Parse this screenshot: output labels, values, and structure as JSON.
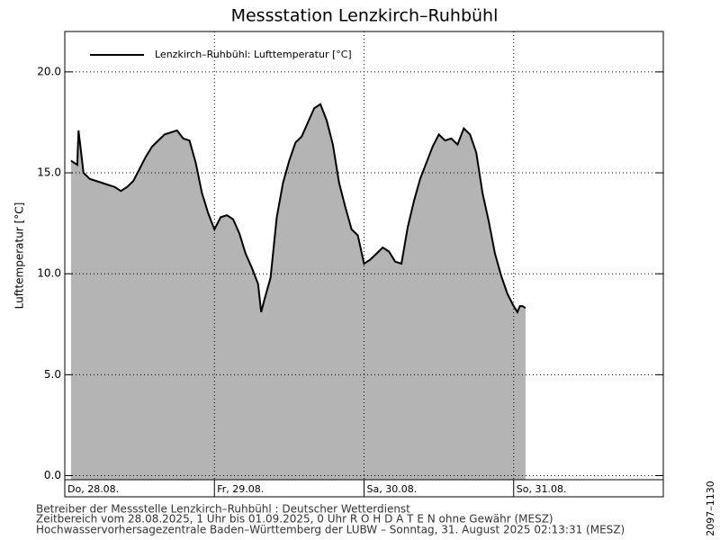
{
  "chart_data": {
    "type": "area",
    "title": "Messstation Lenzkirch–Ruhbühl",
    "y_label": "Lufttemperatur [°C]",
    "series": [
      {
        "name": "Lenzkirch–Ruhbühl: Lufttemperatur  [°C]",
        "color": "#000000",
        "fill": "#b4b4b4",
        "x": [
          1,
          2,
          2.2,
          3,
          4,
          5,
          6,
          7,
          8,
          9,
          10,
          11,
          12,
          13,
          14,
          15,
          16,
          17,
          18,
          19,
          20,
          21,
          22,
          23,
          24,
          25,
          26,
          27,
          28,
          29,
          30,
          31,
          31.5,
          32,
          33,
          34,
          35,
          36,
          37,
          38,
          39,
          40,
          41,
          42,
          43,
          44,
          45,
          46,
          47,
          48,
          49,
          50,
          51,
          52,
          53,
          54,
          55,
          56,
          57,
          58,
          59,
          60,
          61,
          62,
          63,
          64,
          65,
          66,
          67,
          68,
          69,
          70,
          71,
          72,
          72.6,
          73,
          73.4,
          73.9
        ],
        "values": [
          15.6,
          15.4,
          17.1,
          15.0,
          14.7,
          14.6,
          14.5,
          14.4,
          14.3,
          14.1,
          14.3,
          14.6,
          15.2,
          15.8,
          16.3,
          16.6,
          16.9,
          17.0,
          17.1,
          16.7,
          16.6,
          15.5,
          14.0,
          13.0,
          12.2,
          12.8,
          12.9,
          12.7,
          12.0,
          11.0,
          10.3,
          9.5,
          8.1,
          8.7,
          9.8,
          12.8,
          14.5,
          15.6,
          16.5,
          16.8,
          17.5,
          18.2,
          18.4,
          17.6,
          16.4,
          14.5,
          13.3,
          12.2,
          11.9,
          10.5,
          10.7,
          11.0,
          11.3,
          11.1,
          10.6,
          10.5,
          12.3,
          13.6,
          14.7,
          15.5,
          16.3,
          16.9,
          16.6,
          16.7,
          16.4,
          17.2,
          16.9,
          16.0,
          14.0,
          12.6,
          11.0,
          9.9,
          9.0,
          8.4,
          8.1,
          8.4,
          8.4,
          8.3
        ]
      }
    ],
    "xlim": [
      0,
      96
    ],
    "xticks": [
      {
        "value": 0,
        "label": "Do, 28.08."
      },
      {
        "value": 24,
        "label": "Fr, 29.08."
      },
      {
        "value": 48,
        "label": "Sa, 30.08."
      },
      {
        "value": 72,
        "label": "So, 31.08."
      }
    ],
    "ylim": [
      -0.2,
      22
    ],
    "yticks": [
      {
        "value": 0,
        "label": "0.0"
      },
      {
        "value": 5,
        "label": "5.0"
      },
      {
        "value": 10,
        "label": "10.0"
      },
      {
        "value": 15,
        "label": "15.0"
      },
      {
        "value": 20,
        "label": "20.0"
      }
    ],
    "grid": true,
    "legend": "top-left",
    "footer": [
      "Betreiber der Messstelle Lenzkirch–Ruhbühl : Deutscher Wetterdienst",
      "Zeitbereich vom 28.08.2025, 1 Uhr bis 01.09.2025, 0 Uhr   R O H D A T E N ohne Gewähr (MESZ)",
      "Hochwasservorhersagezentrale Baden–Württemberg der LUBW – Sonntag, 31. August 2025 02:13:31 (MESZ)"
    ],
    "side_label": "2097–1130"
  }
}
